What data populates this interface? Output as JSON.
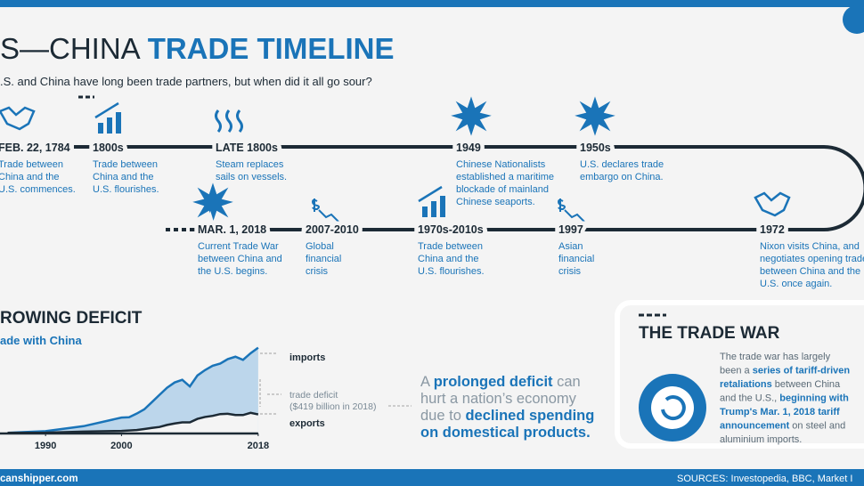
{
  "header": {
    "title_a": "S—CHINA",
    "title_b": "TRADE TIMELINE",
    "subtitle": ".S. and China have long been trade partners, but when did it all go sour?"
  },
  "timeline": {
    "events": [
      {
        "date": "FEB. 22, 1784",
        "lines": [
          "Trade between",
          "China and the",
          "U.S. commences."
        ]
      },
      {
        "date": "1800s",
        "lines": [
          "Trade between",
          "China and the",
          "U.S. flourishes."
        ]
      },
      {
        "date": "LATE 1800s",
        "lines": [
          "Steam replaces",
          "sails on vessels."
        ]
      },
      {
        "date": "1949",
        "lines": [
          "Chinese Nationalists",
          "established a maritime",
          "blockade of mainland",
          "Chinese seaports."
        ]
      },
      {
        "date": "1950s",
        "lines": [
          "U.S. declares trade",
          "embargo on China."
        ]
      },
      {
        "date": "1972",
        "lines": [
          "Nixon visits China, and",
          "negotiates opening trade",
          "between China and the",
          "U.S. once again."
        ]
      },
      {
        "date": "1997",
        "lines": [
          "Asian",
          "financial",
          "crisis"
        ]
      },
      {
        "date": "1970s-2010s",
        "lines": [
          "Trade between",
          "China and the",
          "U.S. flourishes."
        ]
      },
      {
        "date": "2007-2010",
        "lines": [
          "Global",
          "financial",
          "crisis"
        ]
      },
      {
        "date": "MAR. 1, 2018",
        "lines": [
          "Current Trade War",
          "between China and",
          "the U.S. begins."
        ]
      }
    ]
  },
  "deficit": {
    "heading": "ROWING DEFICIT",
    "subheading": "ade with China",
    "imports_label": "imports",
    "deficit_label": "trade deficit",
    "deficit_note": "($419 billion in 2018)",
    "exports_label": "exports",
    "callout": [
      [
        {
          "text": "A ",
          "bold": false
        },
        {
          "text": "prolonged deficit",
          "bold": true
        },
        {
          "text": " can",
          "bold": false
        }
      ],
      [
        {
          "text": "hurt a nation’s economy",
          "bold": false
        }
      ],
      [
        {
          "text": "due to ",
          "bold": false
        },
        {
          "text": "declined spending",
          "bold": true
        }
      ],
      [
        {
          "text": "on domestical products.",
          "bold": true
        }
      ]
    ]
  },
  "chart_data": {
    "type": "area",
    "x": [
      1985,
      1990,
      1995,
      2000,
      2001,
      2002,
      2003,
      2004,
      2005,
      2006,
      2007,
      2008,
      2009,
      2010,
      2011,
      2012,
      2013,
      2014,
      2015,
      2016,
      2017,
      2018
    ],
    "series": [
      {
        "name": "imports",
        "color": "#1a74b8",
        "fill": "#bcd6eb",
        "values": [
          4,
          15,
          46,
          100,
          102,
          125,
          152,
          197,
          243,
          288,
          321,
          338,
          296,
          365,
          399,
          426,
          440,
          468,
          483,
          463,
          505,
          540
        ]
      },
      {
        "name": "exports",
        "color": "#1c2a35",
        "values": [
          4,
          5,
          12,
          16,
          19,
          22,
          28,
          35,
          41,
          54,
          63,
          70,
          70,
          92,
          104,
          111,
          122,
          124,
          116,
          116,
          130,
          120
        ]
      }
    ],
    "xlim": [
      1984,
      2019
    ],
    "ylim": [
      0,
      560
    ],
    "xticks": [
      1990,
      2000,
      2018
    ]
  },
  "trade_war": {
    "title": "THE TRADE WAR",
    "lines": [
      [
        {
          "text": "The trade war has largely",
          "bold": false
        }
      ],
      [
        {
          "text": "been a ",
          "bold": false
        },
        {
          "text": "series of tariff-driven",
          "bold": true
        }
      ],
      [
        {
          "text": "retaliations",
          "bold": true
        },
        {
          "text": " between China",
          "bold": false
        }
      ],
      [
        {
          "text": "and the U.S., ",
          "bold": false
        },
        {
          "text": "beginning with",
          "bold": true
        }
      ],
      [
        {
          "text": "Trump's Mar. 1, 2018 tariff",
          "bold": true
        }
      ],
      [
        {
          "text": "announcement",
          "bold": true
        },
        {
          "text": " on steel and",
          "bold": false
        }
      ],
      [
        {
          "text": "aluminium imports.",
          "bold": false
        }
      ]
    ]
  },
  "footer": {
    "site": "canshipper.com",
    "sources": "SOURCES:  Investopedia, BBC, Market I"
  }
}
